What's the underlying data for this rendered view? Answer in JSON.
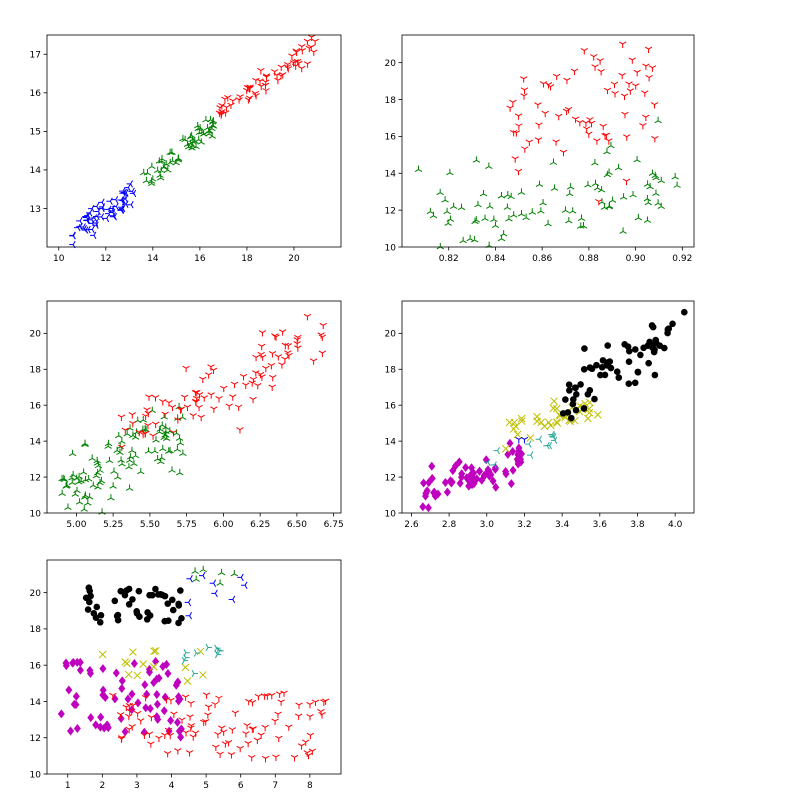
{
  "figure": {
    "background": "#ffffff",
    "layout": "3x2 grid of scatter subplots, bottom-right empty"
  },
  "colors": {
    "blue": "#0000ff",
    "green": "#008000",
    "red": "#ff0000",
    "black": "#000000",
    "yellow": "#bfbf00",
    "magenta": "#bf00bf",
    "teal": "#2ca89a"
  },
  "chart_data": [
    {
      "type": "scatter",
      "xlim": [
        9.5,
        22.0
      ],
      "ylim": [
        12.0,
        17.5
      ],
      "xticks": [
        10,
        12,
        14,
        16,
        18,
        20
      ],
      "yticks": [
        13,
        14,
        15,
        16,
        17
      ],
      "grid": false,
      "series": [
        {
          "color": "blue",
          "marker": "tri_left",
          "trend": {
            "x": [
              10.6,
              13.2
            ],
            "y_intercept": 12.35,
            "slope": 0.43,
            "noise": 0.18
          },
          "count": 60
        },
        {
          "color": "green",
          "marker": "tri_up",
          "trend": {
            "x": [
              13.6,
              16.6
            ],
            "y_intercept": 13.6,
            "slope": 0.55,
            "noise": 0.15
          },
          "count": 60
        },
        {
          "color": "red",
          "marker": "tri_down",
          "trend": {
            "x": [
              16.8,
              21.0
            ],
            "y_intercept": 15.5,
            "slope": 0.42,
            "noise": 0.15
          },
          "count": 60
        }
      ]
    },
    {
      "type": "scatter",
      "xlim": [
        0.8,
        0.925
      ],
      "ylim": [
        10.0,
        21.5
      ],
      "xticks": [
        0.82,
        0.84,
        0.86,
        0.88,
        0.9,
        0.92
      ],
      "yticks": [
        10,
        12,
        14,
        16,
        18,
        20
      ],
      "grid": false,
      "series": [
        {
          "color": "green",
          "marker": "tri_up",
          "cloud": {
            "x": [
              0.807,
              0.918
            ],
            "y_base": 11.0,
            "y_slope": 24.0,
            "x0": 0.81,
            "noise": 1.2
          },
          "count": 95
        },
        {
          "color": "red",
          "marker": "tri_down",
          "cloud": {
            "x": [
              0.845,
              0.91
            ],
            "y_base": 17.0,
            "y_slope": 20.0,
            "x0": 0.85,
            "noise": 1.8
          },
          "count": 70
        }
      ]
    },
    {
      "type": "scatter",
      "xlim": [
        4.8,
        6.8
      ],
      "ylim": [
        10.0,
        21.8
      ],
      "xticks": [
        5.0,
        5.25,
        5.5,
        5.75,
        6.0,
        6.25,
        6.5,
        6.75
      ],
      "yticks": [
        10,
        12,
        14,
        16,
        18,
        20
      ],
      "grid": false,
      "series": [
        {
          "color": "green",
          "marker": "tri_up",
          "trend": {
            "x": [
              4.9,
              5.75
            ],
            "y_intercept": 11.0,
            "slope": 4.4,
            "x0": 4.9,
            "noise": 0.9
          },
          "count": 105
        },
        {
          "color": "red",
          "marker": "tri_down",
          "trend": {
            "x": [
              5.3,
              6.68
            ],
            "y_intercept": 14.5,
            "slope": 4.2,
            "x0": 5.4,
            "noise": 1.0
          },
          "count": 90
        }
      ]
    },
    {
      "type": "scatter",
      "xlim": [
        2.55,
        4.1
      ],
      "ylim": [
        10.0,
        21.8
      ],
      "xticks": [
        2.6,
        2.8,
        3.0,
        3.2,
        3.4,
        3.6,
        3.8,
        4.0
      ],
      "yticks": [
        10,
        12,
        14,
        16,
        18,
        20
      ],
      "grid": false,
      "series": [
        {
          "color": "magenta",
          "marker": "diamond",
          "trend": {
            "x": [
              2.65,
              3.2
            ],
            "y_intercept": 11.0,
            "slope": 3.8,
            "x0": 2.65,
            "noise": 0.45
          },
          "count": 70
        },
        {
          "color": "teal",
          "marker": "tri_left",
          "trend": {
            "x": [
              3.0,
              3.4
            ],
            "y_intercept": 13.0,
            "slope": 3.5,
            "x0": 3.0,
            "noise": 0.35
          },
          "count": 12
        },
        {
          "color": "blue",
          "marker": "tri_down",
          "points": [
            [
              3.17,
              14.1
            ],
            [
              3.2,
              14.1
            ]
          ]
        },
        {
          "color": "yellow",
          "marker": "x",
          "trend": {
            "x": [
              3.1,
              3.6
            ],
            "y_intercept": 14.3,
            "slope": 3.6,
            "x0": 3.1,
            "noise": 0.4
          },
          "count": 40
        },
        {
          "color": "black",
          "marker": "circle",
          "trend": {
            "x": [
              3.4,
              4.05
            ],
            "y_intercept": 16.5,
            "slope": 6.5,
            "x0": 3.45,
            "noise": 0.7
          },
          "count": 65
        }
      ]
    },
    {
      "type": "scatter",
      "xlim": [
        0.4,
        8.9
      ],
      "ylim": [
        10.0,
        21.8
      ],
      "xticks": [
        1,
        2,
        3,
        4,
        5,
        6,
        7,
        8
      ],
      "yticks": [
        10,
        12,
        14,
        16,
        18,
        20
      ],
      "grid": false,
      "series": [
        {
          "color": "black",
          "marker": "circle",
          "box": {
            "x": [
              1.5,
              4.4
            ],
            "y": [
              18.3,
              20.3
            ]
          },
          "count": 45
        },
        {
          "color": "magenta",
          "marker": "diamond",
          "box": {
            "x": [
              0.8,
              4.3
            ],
            "y": [
              12.0,
              16.3
            ]
          },
          "count": 70
        },
        {
          "color": "yellow",
          "marker": "x",
          "box": {
            "x": [
              2.0,
              5.0
            ],
            "y": [
              15.0,
              16.8
            ]
          },
          "count": 14
        },
        {
          "color": "teal",
          "marker": "tri_right",
          "box": {
            "x": [
              3.8,
              5.6
            ],
            "y": [
              15.5,
              17.0
            ]
          },
          "count": 10
        },
        {
          "color": "blue",
          "marker": "tri_left",
          "box": {
            "x": [
              4.2,
              6.8
            ],
            "y": [
              18.5,
              21.0
            ]
          },
          "count": 9
        },
        {
          "color": "green",
          "marker": "tri_up",
          "box": {
            "x": [
              4.4,
              6.2
            ],
            "y": [
              20.0,
              21.3
            ]
          },
          "count": 6
        },
        {
          "color": "red",
          "marker": "tri_down",
          "box": {
            "x": [
              2.2,
              8.6
            ],
            "y": [
              10.8,
              14.5
            ]
          },
          "count": 95
        }
      ]
    }
  ]
}
